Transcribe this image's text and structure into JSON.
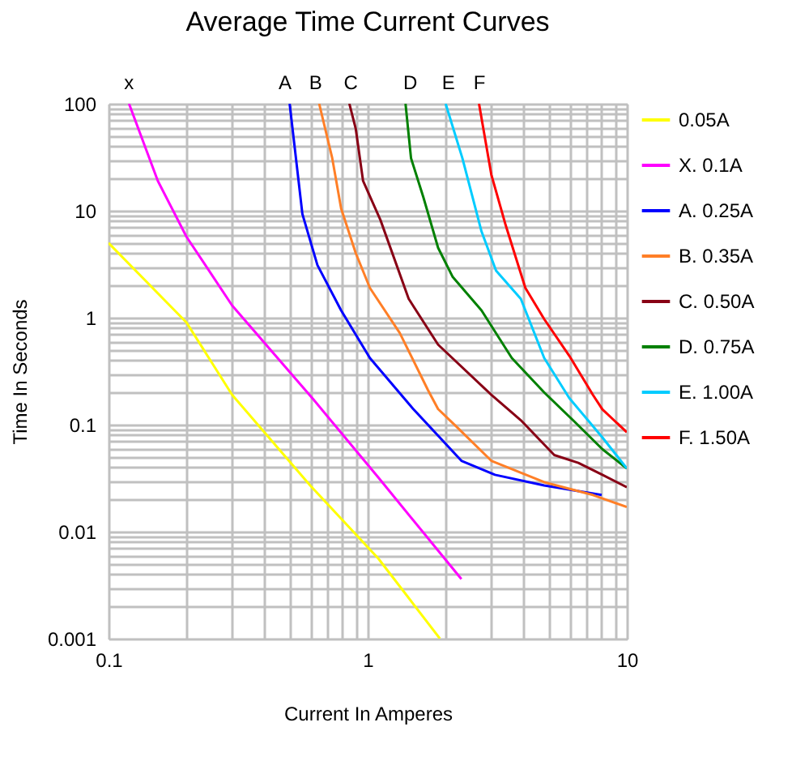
{
  "chart_data": {
    "type": "line",
    "title": "Average Time Current Curves",
    "xlabel": "Current In Amperes",
    "ylabel": "Time In Seconds",
    "log": "xy",
    "grid": true,
    "legend": "right",
    "xlim": [
      0.1,
      10
    ],
    "ylim": [
      0.001,
      100
    ],
    "xticks": [
      0.1,
      {
        "value": 0.2,
        "label": null
      },
      {
        "value": 0.3,
        "label": null
      },
      {
        "value": 0.4,
        "label": null
      },
      {
        "value": 0.5,
        "label": null
      },
      {
        "value": 0.6,
        "label": null
      },
      {
        "value": 0.7,
        "label": null
      },
      {
        "value": 0.8,
        "label": null
      },
      {
        "value": 0.9,
        "label": null
      },
      1,
      {
        "value": 2,
        "label": null
      },
      {
        "value": 3,
        "label": null
      },
      {
        "value": 4,
        "label": null
      },
      {
        "value": 5,
        "label": null
      },
      {
        "value": 6,
        "label": null
      },
      {
        "value": 7,
        "label": null
      },
      {
        "value": 8,
        "label": null
      },
      {
        "value": 9,
        "label": null
      },
      10
    ],
    "yticks": [
      0.001,
      {
        "value": 0.002,
        "label": null
      },
      {
        "value": 0.003,
        "label": null
      },
      {
        "value": 0.004,
        "label": null
      },
      {
        "value": 0.005,
        "label": null
      },
      {
        "value": 0.006,
        "label": null
      },
      {
        "value": 0.007,
        "label": null
      },
      {
        "value": 0.008,
        "label": null
      },
      {
        "value": 0.009,
        "label": null
      },
      0.01,
      {
        "value": 0.02,
        "label": null
      },
      {
        "value": 0.03,
        "label": null
      },
      {
        "value": 0.04,
        "label": null
      },
      {
        "value": 0.05,
        "label": null
      },
      {
        "value": 0.06,
        "label": null
      },
      {
        "value": 0.07,
        "label": null
      },
      {
        "value": 0.08,
        "label": null
      },
      {
        "value": 0.09,
        "label": null
      },
      0.1,
      {
        "value": 0.2,
        "label": null
      },
      {
        "value": 0.3,
        "label": null
      },
      {
        "value": 0.4,
        "label": null
      },
      {
        "value": 0.5,
        "label": null
      },
      {
        "value": 0.6,
        "label": null
      },
      {
        "value": 0.7,
        "label": null
      },
      {
        "value": 0.8,
        "label": null
      },
      {
        "value": 0.9,
        "label": null
      },
      1,
      {
        "value": 2,
        "label": null
      },
      {
        "value": 3,
        "label": null
      },
      {
        "value": 4,
        "label": null
      },
      {
        "value": 5,
        "label": null
      },
      {
        "value": 6,
        "label": null
      },
      {
        "value": 7,
        "label": null
      },
      {
        "value": 8,
        "label": null
      },
      {
        "value": 9,
        "label": null
      },
      10,
      {
        "value": 20,
        "label": null
      },
      {
        "value": 30,
        "label": null
      },
      {
        "value": 40,
        "label": null
      },
      {
        "value": 50,
        "label": null
      },
      {
        "value": 60,
        "label": null
      },
      {
        "value": 70,
        "label": null
      },
      {
        "value": 80,
        "label": null
      },
      {
        "value": 90,
        "label": null
      },
      100
    ],
    "annotations": [
      {
        "text": "x",
        "x": 0.12,
        "y": 100
      },
      {
        "text": "A",
        "x": 0.48,
        "y": 100
      },
      {
        "text": "B",
        "x": 0.63,
        "y": 100
      },
      {
        "text": "C",
        "x": 0.86,
        "y": 100
      },
      {
        "text": "D",
        "x": 1.46,
        "y": 100
      },
      {
        "text": "E",
        "x": 2.05,
        "y": 100
      },
      {
        "text": "F",
        "x": 2.7,
        "y": 100
      }
    ],
    "series": [
      {
        "name": "0.05A",
        "color": "#ffff00",
        "x": [
          0.1,
          0.2,
          0.3,
          0.6,
          1.1,
          1.9
        ],
        "values": [
          5,
          0.9,
          0.19,
          0.027,
          0.0056,
          0.001
        ]
      },
      {
        "name": "X. 0.1A",
        "color": "#ff00ff",
        "x": [
          0.12,
          0.155,
          0.2,
          0.3,
          0.62,
          1.1,
          2.3
        ],
        "values": [
          100,
          19,
          5.7,
          1.3,
          0.17,
          0.032,
          0.0036
        ]
      },
      {
        "name": "A. 0.25A",
        "color": "#0000ff",
        "x": [
          0.5,
          0.56,
          0.64,
          0.79,
          1.02,
          1.5,
          2.3,
          3.1,
          4.8,
          8.0
        ],
        "values": [
          100,
          9.3,
          3.1,
          1.17,
          0.42,
          0.14,
          0.046,
          0.034,
          0.027,
          0.022
        ]
      },
      {
        "name": "B. 0.35A",
        "color": "#ff7f27",
        "x": [
          0.65,
          0.73,
          0.79,
          0.9,
          1.02,
          1.33,
          1.71,
          1.87,
          2.2,
          3.0,
          4.8,
          7.4,
          10
        ],
        "values": [
          100,
          31,
          10.5,
          4,
          1.9,
          0.72,
          0.21,
          0.14,
          0.096,
          0.046,
          0.029,
          0.022,
          0.017
        ]
      },
      {
        "name": "C. 0.50A",
        "color": "#880015",
        "x": [
          0.85,
          0.9,
          0.96,
          1.12,
          1.44,
          1.87,
          3.0,
          3.9,
          5.25,
          6.5,
          8.05,
          10
        ],
        "values": [
          100,
          58,
          19,
          8.2,
          1.5,
          0.56,
          0.19,
          0.11,
          0.052,
          0.044,
          0.034,
          0.026
        ]
      },
      {
        "name": "D. 0.75A",
        "color": "#008000",
        "x": [
          1.4,
          1.47,
          1.64,
          1.87,
          2.13,
          2.75,
          3.6,
          4.8,
          6.2,
          8.05,
          10
        ],
        "values": [
          100,
          31,
          13.4,
          4.5,
          2.4,
          1.17,
          0.42,
          0.2,
          0.11,
          0.059,
          0.039
        ]
      },
      {
        "name": "E. 1.00A",
        "color": "#00ccff",
        "x": [
          2.0,
          2.32,
          2.75,
          3.13,
          3.9,
          4.8,
          6.0,
          8.05,
          10
        ],
        "values": [
          100,
          31,
          6.4,
          2.75,
          1.5,
          0.42,
          0.177,
          0.076,
          0.039
        ]
      },
      {
        "name": "F. 1.50A",
        "color": "#ff0000",
        "x": [
          2.69,
          3.0,
          3.41,
          4.06,
          4.8,
          6.0,
          7.4,
          8.05,
          10
        ],
        "values": [
          100,
          21.8,
          7.3,
          1.9,
          0.97,
          0.44,
          0.19,
          0.139,
          0.085
        ]
      }
    ]
  }
}
